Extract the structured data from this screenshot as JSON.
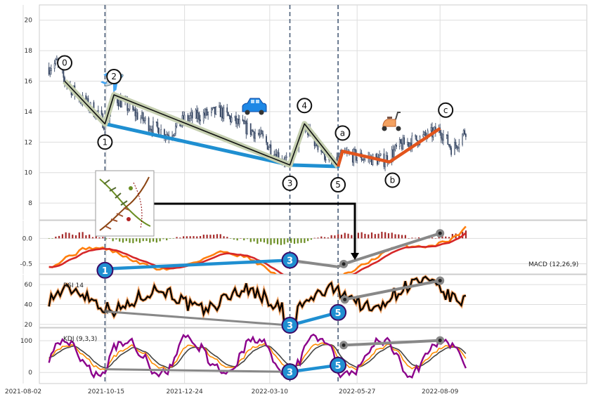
{
  "chart_data": {
    "type": "line",
    "x_axis": {
      "ticks": [
        "2021-08-02",
        "2021-10-15",
        "2021-12-24",
        "2022-03-10",
        "2022-05-27",
        "2022-08-09"
      ]
    },
    "price_panel": {
      "type": "candlestick",
      "y_ticks": [
        "20",
        "18",
        "16",
        "14",
        "12",
        "10",
        "8"
      ],
      "ylim": [
        6.9,
        21.0
      ],
      "approx_close": [
        [
          "2021-08-25",
          16.9
        ],
        [
          "2021-09-01",
          17.2
        ],
        [
          "2021-09-08",
          16.0
        ],
        [
          "2021-09-20",
          15.0
        ],
        [
          "2021-10-05",
          14.0
        ],
        [
          "2021-10-14",
          13.2
        ],
        [
          "2021-10-22",
          15.0
        ],
        [
          "2021-11-08",
          14.0
        ],
        [
          "2021-11-25",
          13.0
        ],
        [
          "2021-12-10",
          12.5
        ],
        [
          "2021-12-24",
          13.5
        ],
        [
          "2022-01-10",
          13.8
        ],
        [
          "2022-01-25",
          14.0
        ],
        [
          "2022-02-10",
          13.2
        ],
        [
          "2022-02-28",
          12.5
        ],
        [
          "2022-03-15",
          11.3
        ],
        [
          "2022-03-28",
          10.6
        ],
        [
          "2022-04-10",
          13.0
        ],
        [
          "2022-04-25",
          11.5
        ],
        [
          "2022-05-05",
          10.5
        ],
        [
          "2022-05-15",
          11.2
        ],
        [
          "2022-06-01",
          11.0
        ],
        [
          "2022-06-20",
          10.8
        ],
        [
          "2022-07-05",
          11.8
        ],
        [
          "2022-07-25",
          12.3
        ],
        [
          "2022-08-09",
          12.8
        ],
        [
          "2022-08-20",
          11.5
        ],
        [
          "2022-09-01",
          12.8
        ]
      ],
      "wave_labels": [
        {
          "label": "0",
          "x": "2021-09-08",
          "y": 16.0
        },
        {
          "label": "1",
          "x": "2021-10-14",
          "y": 13.2
        },
        {
          "label": "2",
          "x": "2021-10-22",
          "y": 15.1
        },
        {
          "label": "3",
          "x": "2022-03-28",
          "y": 10.5
        },
        {
          "label": "4",
          "x": "2022-04-10",
          "y": 13.2
        },
        {
          "label": "5",
          "x": "2022-05-10",
          "y": 10.4
        },
        {
          "label": "a",
          "x": "2022-05-14",
          "y": 11.4
        },
        {
          "label": "b",
          "x": "2022-06-25",
          "y": 10.7
        },
        {
          "label": "c",
          "x": "2022-08-09",
          "y": 12.9
        }
      ],
      "markers": [
        "airplane",
        "car",
        "scooter",
        "plant-inset"
      ]
    },
    "macd_panel": {
      "label": "MACD (12,26,9)",
      "y_ticks": [
        "0.0",
        "-0.5"
      ],
      "ylim": [
        -0.7,
        0.35
      ],
      "divergence_points": [
        {
          "label": "1",
          "x": "2021-10-14",
          "value": -0.6
        },
        {
          "label": "3",
          "x": "2022-03-28",
          "value": -0.43
        }
      ]
    },
    "rsi_panel": {
      "label": "RSI 14",
      "y_ticks": [
        "60",
        "40",
        "20"
      ],
      "ylim": [
        17,
        70
      ],
      "divergence_points": [
        {
          "label": "3",
          "x": "2022-03-28",
          "value": 19
        },
        {
          "label": "5",
          "x": "2022-05-10",
          "value": 32
        }
      ]
    },
    "kdj_panel": {
      "label": "KDJ (9,3,3)",
      "y_ticks": [
        "100",
        "0"
      ],
      "ylim": [
        -35,
        140
      ],
      "divergence_points": [
        {
          "label": "3",
          "x": "2022-03-28",
          "value": 2
        },
        {
          "label": "5",
          "x": "2022-05-10",
          "value": 23
        }
      ]
    }
  }
}
